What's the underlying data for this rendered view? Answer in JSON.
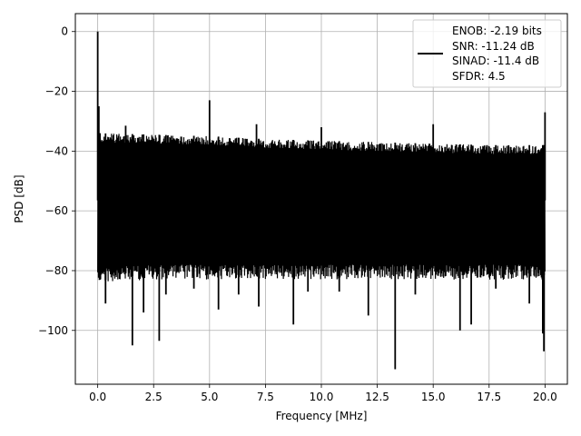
{
  "chart_data": {
    "type": "line",
    "xlabel": "Frequency [MHz]",
    "ylabel": "PSD [dB]",
    "xlim": [
      -1.0,
      21.0
    ],
    "ylim": [
      -118,
      6
    ],
    "xticks": [
      0.0,
      2.5,
      5.0,
      7.5,
      10.0,
      12.5,
      15.0,
      17.5,
      20.0
    ],
    "xtick_labels": [
      "0.0",
      "2.5",
      "5.0",
      "7.5",
      "10.0",
      "12.5",
      "15.0",
      "17.5",
      "20.0"
    ],
    "yticks": [
      0,
      -20,
      -40,
      -60,
      -80,
      -100
    ],
    "ytick_labels": [
      "0",
      "−20",
      "−40",
      "−60",
      "−80",
      "−100"
    ],
    "grid": true,
    "legend_position": "top-right",
    "series_color": "#000000",
    "legend_entries": [
      "ENOB: -2.19 bits",
      "SNR: -11.24 dB",
      "SINAD: -11.4 dB",
      "SFDR: 4.5"
    ],
    "noise_envelope": {
      "x": [
        0.0,
        2.5,
        5.0,
        7.5,
        10.0,
        12.5,
        15.0,
        17.5,
        20.0
      ],
      "upper": [
        -34,
        -34.5,
        -35,
        -36,
        -36.5,
        -37,
        -37.5,
        -38,
        -38
      ],
      "lower": [
        -79,
        -78,
        -78,
        -78,
        -78,
        -78,
        -78,
        -78,
        -78
      ]
    },
    "spikes_up": [
      {
        "x": 0.0,
        "y": 0
      },
      {
        "x": 0.05,
        "y": -25
      },
      {
        "x": 1.25,
        "y": -31.5
      },
      {
        "x": 5.0,
        "y": -23
      },
      {
        "x": 7.1,
        "y": -31
      },
      {
        "x": 10.0,
        "y": -32
      },
      {
        "x": 15.0,
        "y": -31
      },
      {
        "x": 20.0,
        "y": -27
      }
    ],
    "spikes_down": [
      {
        "x": 0.1,
        "y": -83
      },
      {
        "x": 0.35,
        "y": -91
      },
      {
        "x": 1.55,
        "y": -105
      },
      {
        "x": 2.05,
        "y": -94
      },
      {
        "x": 2.75,
        "y": -103.5
      },
      {
        "x": 3.05,
        "y": -88
      },
      {
        "x": 4.3,
        "y": -86
      },
      {
        "x": 5.4,
        "y": -93
      },
      {
        "x": 6.3,
        "y": -88
      },
      {
        "x": 7.2,
        "y": -92
      },
      {
        "x": 8.75,
        "y": -98
      },
      {
        "x": 9.4,
        "y": -87
      },
      {
        "x": 10.8,
        "y": -87
      },
      {
        "x": 12.1,
        "y": -95
      },
      {
        "x": 13.3,
        "y": -113
      },
      {
        "x": 14.2,
        "y": -88
      },
      {
        "x": 16.2,
        "y": -100
      },
      {
        "x": 16.7,
        "y": -98
      },
      {
        "x": 17.8,
        "y": -86
      },
      {
        "x": 19.3,
        "y": -91
      },
      {
        "x": 19.9,
        "y": -101
      },
      {
        "x": 19.95,
        "y": -107
      }
    ]
  }
}
